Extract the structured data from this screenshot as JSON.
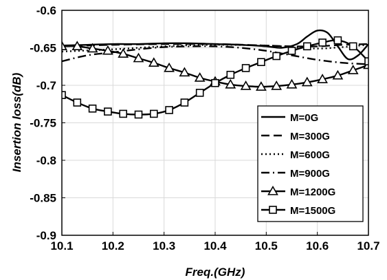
{
  "chart_data": {
    "type": "line",
    "xlabel": "Freq.(GHz)",
    "ylabel": "Insertion loss(dB)",
    "xlim": [
      10.1,
      10.7
    ],
    "ylim": [
      -0.9,
      -0.6
    ],
    "xticks": [
      "10.1",
      "10.2",
      "10.3",
      "10.4",
      "10.5",
      "10.6",
      "10.7"
    ],
    "yticks": [
      "-0.6",
      "-0.65",
      "-0.7",
      "-0.75",
      "-0.8",
      "-0.85",
      "-0.9"
    ],
    "grid": true,
    "legend_position": "center-right",
    "series": [
      {
        "name": "M=0G",
        "style": "solid",
        "marker": "none",
        "x": [
          10.1,
          10.15,
          10.2,
          10.25,
          10.3,
          10.35,
          10.4,
          10.45,
          10.5,
          10.53,
          10.56,
          10.58,
          10.6,
          10.62,
          10.64,
          10.66,
          10.68,
          10.7
        ],
        "y": [
          -0.647,
          -0.646,
          -0.645,
          -0.645,
          -0.644,
          -0.644,
          -0.645,
          -0.646,
          -0.648,
          -0.65,
          -0.645,
          -0.635,
          -0.627,
          -0.63,
          -0.648,
          -0.665,
          -0.66,
          -0.645
        ]
      },
      {
        "name": "M=300G",
        "style": "dash",
        "marker": "none",
        "x": [
          10.1,
          10.2,
          10.3,
          10.4,
          10.5,
          10.55,
          10.6,
          10.65,
          10.7
        ],
        "y": [
          -0.648,
          -0.646,
          -0.645,
          -0.645,
          -0.647,
          -0.648,
          -0.648,
          -0.646,
          -0.645
        ]
      },
      {
        "name": "M=600G",
        "style": "dot",
        "marker": "none",
        "x": [
          10.1,
          10.2,
          10.3,
          10.4,
          10.5,
          10.55,
          10.6,
          10.65,
          10.7
        ],
        "y": [
          -0.655,
          -0.652,
          -0.648,
          -0.646,
          -0.647,
          -0.649,
          -0.651,
          -0.649,
          -0.646
        ]
      },
      {
        "name": "M=900G",
        "style": "dashdot",
        "marker": "none",
        "x": [
          10.1,
          10.15,
          10.2,
          10.25,
          10.3,
          10.35,
          10.4,
          10.45,
          10.5,
          10.55,
          10.6,
          10.65,
          10.7
        ],
        "y": [
          -0.668,
          -0.66,
          -0.656,
          -0.652,
          -0.649,
          -0.648,
          -0.648,
          -0.65,
          -0.654,
          -0.66,
          -0.666,
          -0.67,
          -0.672
        ]
      },
      {
        "name": "M=1200G",
        "style": "solid",
        "marker": "triangle",
        "x": [
          10.1,
          10.13,
          10.16,
          10.19,
          10.22,
          10.25,
          10.28,
          10.31,
          10.34,
          10.37,
          10.4,
          10.43,
          10.46,
          10.49,
          10.52,
          10.55,
          10.58,
          10.61,
          10.64,
          10.67,
          10.7
        ],
        "y": [
          -0.648,
          -0.648,
          -0.651,
          -0.654,
          -0.658,
          -0.664,
          -0.67,
          -0.677,
          -0.683,
          -0.69,
          -0.695,
          -0.699,
          -0.701,
          -0.702,
          -0.701,
          -0.699,
          -0.696,
          -0.692,
          -0.687,
          -0.68,
          -0.673
        ]
      },
      {
        "name": "M=1500G",
        "style": "solid",
        "marker": "square",
        "x": [
          10.1,
          10.13,
          10.16,
          10.19,
          10.22,
          10.25,
          10.28,
          10.31,
          10.34,
          10.37,
          10.4,
          10.43,
          10.46,
          10.49,
          10.52,
          10.55,
          10.58,
          10.61,
          10.64,
          10.67,
          10.7
        ],
        "y": [
          -0.713,
          -0.723,
          -0.731,
          -0.735,
          -0.738,
          -0.739,
          -0.738,
          -0.733,
          -0.723,
          -0.71,
          -0.697,
          -0.686,
          -0.677,
          -0.669,
          -0.661,
          -0.654,
          -0.648,
          -0.643,
          -0.64,
          -0.648,
          -0.668
        ]
      }
    ]
  }
}
